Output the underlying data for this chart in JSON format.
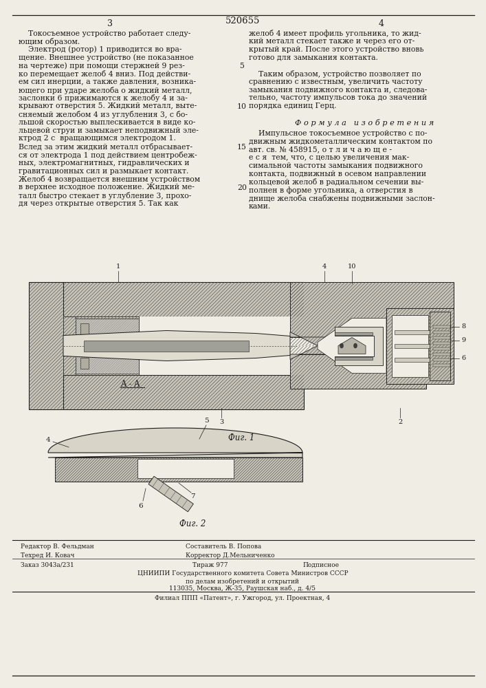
{
  "title": "520655",
  "page_left": "3",
  "page_right": "4",
  "bg_color": "#f0ede4",
  "text_color": "#1a1a1a",
  "left_col_lines": [
    "    Токосъемное устройство работает следу-",
    "ющим образом.",
    "    Электрод (ротор) 1 приводится во вра-",
    "щение. Внешнее устройство (не показанное",
    "на чертеже) при помощи стержней 9 рез-",
    "ко перемещает желоб 4 вниз. Под действи-",
    "ем сил инерции, а также давления, возника-",
    "ющего при ударе желоба о жидкий металл,",
    "заслонки 6 прижимаются к желобу 4 и за-",
    "крывают отверстия 5. Жидкий металл, выте-",
    "сняемый желобом 4 из углубления 3, с бо-",
    "льшой скоростью выплескивается в виде ко-",
    "льцевой струи и замыкает неподвижный эле-",
    "ктрод 2 с  вращающимся электродом 1.",
    "Вслед за этим жидкий металл отбрасывает-",
    "ся от электрода 1 под действием центробеж-",
    "ных, электромагнитных, гидравлических и",
    "гравитационных сил и размыкает контакт.",
    "Желоб 4 возвращается внешним устройством",
    "в верхнее исходное положение. Жидкий ме-",
    "талл быстро стекает в углубление 3, прохо-",
    "дя через открытые отверстия 5. Так как"
  ],
  "right_col_top_lines": [
    "желоб 4 имеет профиль угольника, то жид-",
    "кий металл стекает также и через его от-",
    "крытый край. После этого устройство вновь",
    "готово для замыкания контакта.",
    "",
    "    Таким образом, устройство позволяет по",
    "сравнению с известным, увеличить частоту",
    "замыкания подвижного контакта и, следова-",
    "тельно, частоту импульсов тока до значений",
    "порядка единиц Герц."
  ],
  "formula_title": "Ф о р м у л а   и з о б р е т е н и я",
  "formula_lines": [
    "    Импульсное токосъемное устройство с по-",
    "движным жидкометаллическим контактом по",
    "авт. св. № 458915, о т л и ч а ю щ е -",
    "е с я  тем, что, с целью увеличения мак-",
    "симальной частоты замыкания подвижного",
    "контакта, подвижный в осевом направлении",
    "кольцевой желоб в радиальном сечении вы-",
    "полнен в форме угольника, а отверстия в",
    "днище желоба снабжены подвижными заслон-",
    "ками."
  ],
  "fig1_caption": "Фиг. 1",
  "fig2_caption": "Фиг. 2",
  "fig2_label": "A - A",
  "line_numbers": [
    "5",
    "10",
    "15",
    "20"
  ],
  "footer_editor": "Редактор В. Фельдман",
  "footer_compiler": "Составитель В. Попова",
  "footer_techred": "Техред И. Ковач",
  "footer_corrector": "Корректор Д.Мельниченко",
  "footer_order": "Заказ 3043а/231",
  "footer_tirazh": "Тираж 977",
  "footer_podpisnoe": "Подписное",
  "footer_org": "ЦНИИПИ Государственного комитета Совета Министров СССР",
  "footer_dept": "по делам изобретений и открытий",
  "footer_address": "113035, Москва, Ж-35, Раушская наб., д. 4/5",
  "footer_filial": "Филиал ППП «Патент», г. Ужгород, ул. Проектная, 4"
}
